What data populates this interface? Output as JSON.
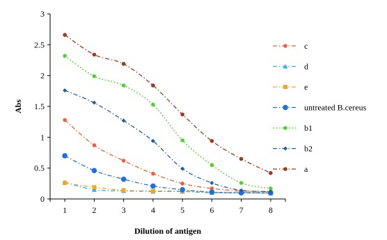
{
  "chart_data": {
    "type": "line",
    "title": "",
    "xlabel": "Dilution of antigen",
    "ylabel": "Abs",
    "x": [
      1,
      2,
      3,
      4,
      5,
      6,
      7,
      8
    ],
    "xlim": [
      0.5,
      8.5
    ],
    "ylim": [
      0,
      3
    ],
    "yticks": [
      0,
      0.5,
      1,
      1.5,
      2,
      2.5,
      3
    ],
    "ytick_labels": [
      "0",
      "0.5",
      "1",
      "1.5",
      "2",
      "2.5",
      "3"
    ],
    "xtick_labels": [
      "1",
      "2",
      "3",
      "4",
      "5",
      "6",
      "7",
      "8"
    ],
    "grid": false,
    "legend_position": "right",
    "series": [
      {
        "name": "c",
        "color": "#E8603C",
        "marker": "circle",
        "dash": "dash-dot",
        "values": [
          1.28,
          0.87,
          0.62,
          0.41,
          0.25,
          0.17,
          0.13,
          0.12
        ]
      },
      {
        "name": "d",
        "color": "#2BB5E6",
        "marker": "triangle",
        "dash": "dash-dot",
        "values": [
          0.27,
          0.15,
          0.13,
          0.12,
          0.12,
          0.1,
          0.1,
          0.09
        ]
      },
      {
        "name": "e",
        "color": "#F5A623",
        "marker": "square",
        "dash": "dash-dot",
        "values": [
          0.26,
          0.19,
          0.14,
          0.13,
          0.13,
          0.11,
          0.11,
          0.1
        ]
      },
      {
        "name": "untreated B.cereus",
        "color": "#1E6FE0",
        "marker": "circle-large",
        "dash": "dash-dot",
        "values": [
          0.7,
          0.46,
          0.32,
          0.21,
          0.15,
          0.11,
          0.1,
          0.1
        ]
      },
      {
        "name": "b1",
        "color": "#4FD22E",
        "marker": "circle",
        "dash": "dotted",
        "values": [
          2.32,
          1.99,
          1.84,
          1.53,
          0.95,
          0.55,
          0.26,
          0.17
        ]
      },
      {
        "name": "b2",
        "color": "#1F5FA0",
        "marker": "diamond",
        "dash": "dash-dot",
        "values": [
          1.76,
          1.56,
          1.27,
          0.94,
          0.49,
          0.26,
          0.14,
          0.12
        ]
      },
      {
        "name": "a",
        "color": "#A0381C",
        "marker": "circle",
        "dash": "dash-dot",
        "values": [
          2.66,
          2.34,
          2.19,
          1.84,
          1.37,
          0.94,
          0.65,
          0.42
        ]
      }
    ]
  }
}
